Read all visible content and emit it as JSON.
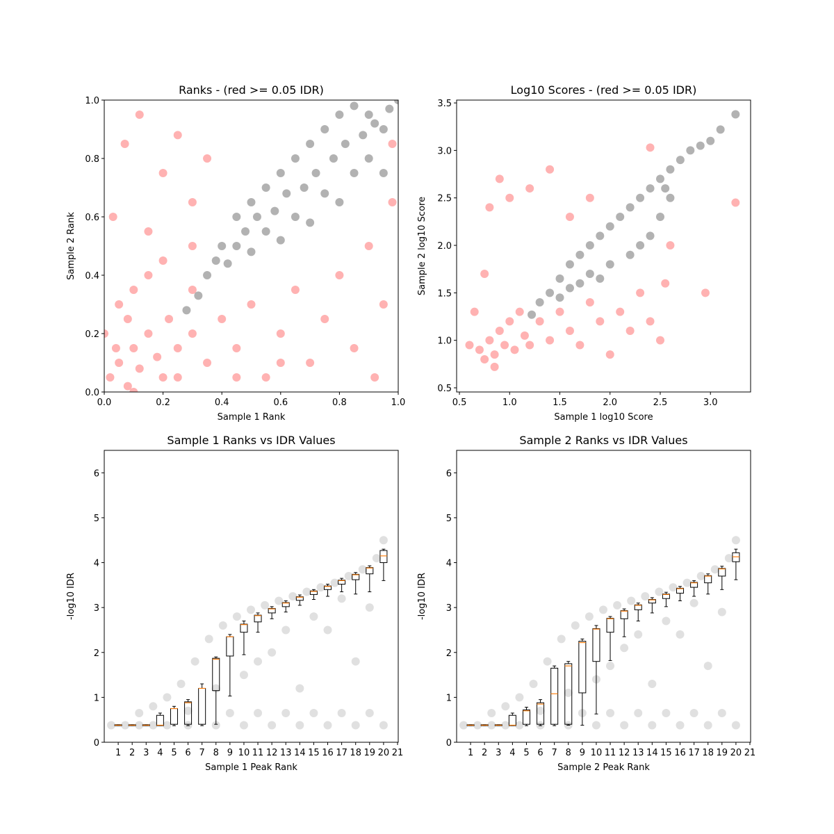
{
  "chart_data": [
    {
      "type": "scatter",
      "title": "Ranks - (red >= 0.05 IDR)",
      "xlabel": "Sample 1 Rank",
      "ylabel": "Sample 2 Rank",
      "xlim": [
        0,
        1
      ],
      "ylim": [
        0,
        1
      ],
      "alpha": 0.3,
      "xticks": [
        {
          "value": 0,
          "label": "0.0"
        },
        {
          "value": 0.2,
          "label": "0.2"
        },
        {
          "value": 0.4,
          "label": "0.4"
        },
        {
          "value": 0.6,
          "label": "0.6"
        },
        {
          "value": 0.8,
          "label": "0.8"
        },
        {
          "value": 1,
          "label": "1.0"
        }
      ],
      "yticks": [
        {
          "value": 0,
          "label": "0.0"
        },
        {
          "value": 0.2,
          "label": "0.2"
        },
        {
          "value": 0.4,
          "label": "0.4"
        },
        {
          "value": 0.6,
          "label": "0.6"
        },
        {
          "value": 0.8,
          "label": "0.8"
        },
        {
          "value": 1,
          "label": "1.0"
        }
      ],
      "series": [
        {
          "color": "#ff0000",
          "x": [
            0.02,
            0.05,
            0.08,
            0.1,
            0.12,
            0.15,
            0.18,
            0.2,
            0.22,
            0.25,
            0.05,
            0.1,
            0.15,
            0.2,
            0.3,
            0.25,
            0.3,
            0.35,
            0.4,
            0.45,
            0.5,
            0.55,
            0.6,
            0.65,
            0.7,
            0.75,
            0.8,
            0.85,
            0.9,
            0.95,
            0.98,
            0.92,
            0.03,
            0.07,
            0.12,
            0.2,
            0.25,
            0.3,
            0.35,
            0.15,
            0.0,
            0.08,
            0.04,
            0.3,
            0.98,
            0.6,
            0.45,
            0.1
          ],
          "y": [
            0.05,
            0.1,
            0.02,
            0.15,
            0.08,
            0.2,
            0.12,
            0.05,
            0.25,
            0.15,
            0.3,
            0.35,
            0.4,
            0.45,
            0.5,
            0.05,
            0.2,
            0.1,
            0.25,
            0.15,
            0.3,
            0.05,
            0.2,
            0.35,
            0.1,
            0.25,
            0.4,
            0.15,
            0.5,
            0.3,
            0.65,
            0.05,
            0.6,
            0.85,
            0.95,
            0.75,
            0.88,
            0.65,
            0.8,
            0.55,
            0.2,
            0.25,
            0.15,
            0.35,
            0.85,
            0.1,
            0.05,
            0.0
          ]
        },
        {
          "color": "#000000",
          "x": [
            0.28,
            0.32,
            0.35,
            0.38,
            0.4,
            0.42,
            0.45,
            0.48,
            0.5,
            0.52,
            0.55,
            0.58,
            0.6,
            0.62,
            0.65,
            0.68,
            0.7,
            0.72,
            0.75,
            0.78,
            0.8,
            0.82,
            0.85,
            0.88,
            0.9,
            0.92,
            0.95,
            0.97,
            1.0,
            0.55,
            0.6,
            0.7,
            0.75,
            0.8,
            0.45,
            0.5,
            0.65,
            0.85,
            0.9,
            0.95
          ],
          "y": [
            0.28,
            0.33,
            0.4,
            0.45,
            0.5,
            0.44,
            0.5,
            0.55,
            0.48,
            0.6,
            0.55,
            0.62,
            0.52,
            0.68,
            0.6,
            0.7,
            0.58,
            0.75,
            0.68,
            0.8,
            0.65,
            0.85,
            0.75,
            0.88,
            0.8,
            0.92,
            0.9,
            0.97,
            1.0,
            0.7,
            0.75,
            0.85,
            0.9,
            0.95,
            0.6,
            0.65,
            0.8,
            0.98,
            0.95,
            0.75
          ]
        }
      ]
    },
    {
      "type": "scatter",
      "title": "Log10 Scores - (red >= 0.05 IDR)",
      "xlabel": "Sample 1 log10 Score",
      "ylabel": "Sample 2 log10 Score",
      "xlim": [
        0.472,
        3.4
      ],
      "ylim": [
        0.456,
        3.53
      ],
      "alpha": 0.3,
      "xticks": [
        0.5,
        {
          "value": 1,
          "label": "1.0"
        },
        1.5,
        {
          "value": 2,
          "label": "2.0"
        },
        2.5,
        {
          "value": 3,
          "label": "3.0"
        }
      ],
      "yticks": [
        0.5,
        {
          "value": 1,
          "label": "1.0"
        },
        1.5,
        {
          "value": 2,
          "label": "2.0"
        },
        2.5,
        {
          "value": 3,
          "label": "3.0"
        },
        3.5
      ],
      "series": [
        {
          "color": "#ff0000",
          "x": [
            0.7,
            0.75,
            0.8,
            0.85,
            0.9,
            0.95,
            1.0,
            1.05,
            1.1,
            1.15,
            1.2,
            1.3,
            1.4,
            1.5,
            1.6,
            1.7,
            1.8,
            1.9,
            2.0,
            2.1,
            2.2,
            2.3,
            2.4,
            2.5,
            2.55,
            0.65,
            0.8,
            0.9,
            1.0,
            1.2,
            1.4,
            1.6,
            1.8,
            0.75,
            2.6,
            3.25,
            2.4,
            2.95,
            0.6,
            0.85
          ],
          "y": [
            0.9,
            0.8,
            1.0,
            0.85,
            1.1,
            0.95,
            1.2,
            0.9,
            1.3,
            1.05,
            0.95,
            1.2,
            1.0,
            1.3,
            1.1,
            0.95,
            1.4,
            1.2,
            0.85,
            1.3,
            1.1,
            1.5,
            1.2,
            1.0,
            1.6,
            1.3,
            2.4,
            2.7,
            2.5,
            2.6,
            2.8,
            2.3,
            2.5,
            1.7,
            2.0,
            2.45,
            3.03,
            1.5,
            0.95,
            0.72
          ]
        },
        {
          "color": "#000000",
          "x": [
            1.22,
            1.3,
            1.4,
            1.5,
            1.5,
            1.6,
            1.7,
            1.7,
            1.8,
            1.9,
            1.9,
            2.0,
            2.0,
            2.1,
            2.2,
            2.2,
            2.3,
            2.4,
            2.4,
            2.5,
            2.5,
            2.6,
            2.6,
            2.7,
            2.8,
            2.9,
            3.0,
            3.1,
            3.25,
            1.8,
            2.3,
            2.55,
            1.6
          ],
          "y": [
            1.27,
            1.4,
            1.5,
            1.45,
            1.65,
            1.8,
            1.6,
            1.9,
            2.0,
            1.65,
            2.1,
            1.8,
            2.2,
            2.3,
            1.9,
            2.4,
            2.5,
            2.1,
            2.6,
            2.7,
            2.3,
            2.5,
            2.8,
            2.9,
            3.0,
            3.05,
            3.1,
            3.22,
            3.38,
            1.7,
            2.0,
            2.6,
            1.55
          ]
        }
      ]
    },
    {
      "type": "box",
      "title": "Sample 1 Ranks vs IDR Values",
      "xlabel": "Sample 1 Peak Rank",
      "ylabel": "-log10 IDR",
      "xlim": [
        0,
        21.05
      ],
      "ylim": [
        0,
        6.5
      ],
      "alpha": 0.12,
      "median_color": "#ff7f0e",
      "xticks": [
        1,
        2,
        3,
        4,
        5,
        6,
        7,
        8,
        9,
        10,
        11,
        12,
        13,
        14,
        15,
        16,
        17,
        18,
        19,
        20,
        21
      ],
      "yticks": [
        0,
        1,
        2,
        3,
        4,
        5,
        6
      ],
      "series": [
        {
          "color": "#000000",
          "x": [
            0.5,
            1.5,
            2.5,
            3.5,
            4.5,
            6,
            8,
            10,
            12,
            14,
            16,
            18,
            20,
            2.5,
            3.5,
            4.5,
            5.5,
            6.5,
            7.5,
            8.5,
            9.5,
            10.5,
            11.5,
            12.5,
            13.5,
            14.5,
            15.5,
            16.5,
            17.5,
            18.5,
            19.5,
            20,
            6,
            8,
            10,
            12,
            14,
            16,
            18,
            19,
            9,
            11,
            13,
            15,
            17,
            19,
            15,
            17,
            13,
            11
          ],
          "y": [
            0.38,
            0.38,
            0.38,
            0.38,
            0.38,
            0.38,
            0.38,
            0.38,
            0.38,
            0.38,
            0.38,
            0.38,
            0.38,
            0.65,
            0.8,
            1.0,
            1.3,
            1.8,
            2.3,
            2.6,
            2.8,
            2.95,
            3.05,
            3.15,
            3.25,
            3.35,
            3.45,
            3.55,
            3.7,
            3.85,
            4.1,
            4.5,
            0.7,
            1.2,
            1.5,
            2.0,
            1.2,
            2.5,
            1.8,
            3.0,
            0.65,
            0.65,
            0.65,
            0.65,
            0.65,
            0.65,
            2.8,
            3.2,
            2.5,
            1.8
          ]
        }
      ],
      "positions": [
        1,
        2,
        3,
        4,
        5,
        6,
        7,
        8,
        9,
        10,
        11,
        12,
        13,
        14,
        15,
        16,
        17,
        18,
        19,
        20
      ],
      "boxes": {
        "whislo": [
          0.37,
          0.37,
          0.37,
          0.37,
          0.37,
          0.37,
          0.37,
          0.4,
          1.03,
          1.95,
          2.45,
          2.75,
          2.9,
          3.05,
          3.18,
          3.25,
          3.35,
          3.3,
          3.35,
          3.6
        ],
        "q1": [
          0.37,
          0.37,
          0.37,
          0.37,
          0.4,
          0.4,
          0.4,
          1.15,
          1.92,
          2.45,
          2.68,
          2.88,
          3.02,
          3.16,
          3.29,
          3.4,
          3.52,
          3.62,
          3.75,
          4.0
        ],
        "median": [
          0.38,
          0.38,
          0.38,
          0.38,
          0.75,
          0.88,
          1.2,
          1.85,
          2.35,
          2.62,
          2.82,
          2.97,
          3.1,
          3.23,
          3.36,
          3.47,
          3.6,
          3.73,
          3.88,
          4.15
        ],
        "q3": [
          0.39,
          0.39,
          0.39,
          0.6,
          0.75,
          0.9,
          1.2,
          1.87,
          2.35,
          2.63,
          2.83,
          2.98,
          3.11,
          3.24,
          3.37,
          3.48,
          3.61,
          3.74,
          3.89,
          4.27
        ],
        "whishi": [
          0.39,
          0.39,
          0.39,
          0.65,
          0.8,
          0.95,
          1.3,
          1.9,
          2.4,
          2.7,
          2.88,
          3.02,
          3.15,
          3.28,
          3.4,
          3.52,
          3.65,
          3.78,
          3.93,
          4.3
        ]
      }
    },
    {
      "type": "box",
      "title": "Sample 2 Ranks vs IDR Values",
      "xlabel": "Sample 2 Peak Rank",
      "ylabel": "-log10 IDR",
      "xlim": [
        0,
        21.05
      ],
      "ylim": [
        0,
        6.5
      ],
      "alpha": 0.12,
      "median_color": "#ff7f0e",
      "xticks": [
        1,
        2,
        3,
        4,
        5,
        6,
        7,
        8,
        9,
        10,
        11,
        12,
        13,
        14,
        15,
        16,
        17,
        18,
        19,
        20,
        21
      ],
      "yticks": [
        0,
        1,
        2,
        3,
        4,
        5,
        6
      ],
      "series": [
        {
          "color": "#000000",
          "x": [
            0.5,
            1.5,
            2.5,
            3.5,
            4.5,
            6,
            8,
            10,
            12,
            14,
            16,
            18,
            20,
            2.5,
            3.5,
            4.5,
            5.5,
            6.5,
            7.5,
            8.5,
            9.5,
            10.5,
            11.5,
            12.5,
            13.5,
            14.5,
            15.5,
            16.5,
            17.5,
            18.5,
            19.5,
            20,
            6,
            8,
            10,
            12,
            14,
            16,
            18,
            19,
            9,
            11,
            13,
            15,
            17,
            19,
            15,
            17,
            13,
            11
          ],
          "y": [
            0.38,
            0.38,
            0.38,
            0.38,
            0.38,
            0.38,
            0.38,
            0.38,
            0.38,
            0.38,
            0.38,
            0.38,
            0.38,
            0.65,
            0.8,
            1.0,
            1.3,
            1.8,
            2.3,
            2.6,
            2.8,
            2.95,
            3.05,
            3.15,
            3.25,
            3.35,
            3.45,
            3.55,
            3.7,
            3.85,
            4.1,
            4.5,
            0.7,
            1.1,
            1.4,
            2.1,
            1.3,
            2.4,
            1.7,
            2.9,
            0.65,
            0.65,
            0.65,
            0.65,
            0.65,
            0.65,
            2.7,
            3.1,
            2.4,
            1.7
          ]
        }
      ],
      "positions": [
        1,
        2,
        3,
        4,
        5,
        6,
        7,
        8,
        9,
        10,
        11,
        12,
        13,
        14,
        15,
        16,
        17,
        18,
        19,
        20
      ],
      "boxes": {
        "whislo": [
          0.37,
          0.37,
          0.37,
          0.37,
          0.37,
          0.37,
          0.37,
          0.38,
          0.38,
          0.63,
          1.82,
          2.35,
          2.7,
          2.88,
          3.02,
          3.15,
          3.25,
          3.3,
          3.4,
          3.62
        ],
        "q1": [
          0.37,
          0.37,
          0.37,
          0.37,
          0.4,
          0.4,
          0.4,
          0.4,
          1.1,
          1.8,
          2.45,
          2.75,
          2.95,
          3.1,
          3.2,
          3.32,
          3.45,
          3.55,
          3.7,
          4.02
        ],
        "median": [
          0.38,
          0.38,
          0.38,
          0.38,
          0.7,
          0.85,
          1.08,
          1.7,
          2.22,
          2.52,
          2.75,
          2.92,
          3.05,
          3.17,
          3.29,
          3.42,
          3.55,
          3.7,
          3.86,
          4.13
        ],
        "q3": [
          0.39,
          0.39,
          0.39,
          0.6,
          0.72,
          0.88,
          1.65,
          1.75,
          2.25,
          2.53,
          2.76,
          2.93,
          3.06,
          3.18,
          3.3,
          3.43,
          3.56,
          3.71,
          3.87,
          4.22
        ],
        "whishi": [
          0.39,
          0.39,
          0.39,
          0.65,
          0.78,
          0.95,
          1.7,
          1.8,
          2.3,
          2.6,
          2.8,
          2.97,
          3.1,
          3.22,
          3.34,
          3.47,
          3.6,
          3.75,
          3.92,
          4.3
        ]
      }
    }
  ]
}
